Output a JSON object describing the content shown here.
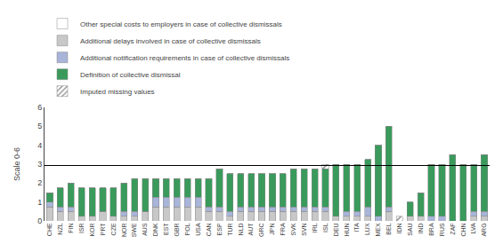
{
  "chart_data": {
    "type": "bar",
    "stacked": true,
    "ylabel": "Scale 0-6",
    "categories": [
      "CHE",
      "NZL",
      "FIN",
      "ISR",
      "KOR",
      "PRT",
      "CZE",
      "NOR",
      "SWE",
      "AUS",
      "DNK",
      "EST",
      "GBR",
      "POL",
      "USA",
      "CAN",
      "ESP",
      "TUR",
      "NLD",
      "AUT",
      "GRC",
      "JPN",
      "FRA",
      "SVK",
      "SVN",
      "IRL",
      "ISL",
      "DEU",
      "HUN",
      "ITA",
      "LUX",
      "MEX",
      "BEL",
      "IDN",
      "SAU",
      "IND",
      "BRA",
      "RUS",
      "ZAF",
      "CHN",
      "LVA",
      "ARG"
    ],
    "series": [
      {
        "name": "Other special costs to employers in case of collective dismissals",
        "color": "#ffffff",
        "values": [
          0.0,
          0.0,
          0.0,
          0.0,
          0.0,
          0.0,
          0.0,
          0.0,
          0.0,
          0.0,
          0.0,
          0.0,
          0.0,
          0.0,
          0.0,
          0.0,
          0.0,
          0.0,
          0.0,
          0.0,
          0.0,
          0.0,
          0.0,
          0.0,
          0.0,
          0.0,
          0.0,
          0.0,
          0.0,
          0.0,
          0.0,
          0.0,
          0.0,
          0.0,
          0.0,
          0.0,
          0.0,
          0.0,
          0.0,
          0.0,
          0.0,
          0.0
        ]
      },
      {
        "name": "Additional delays involved in case of collective dismissals",
        "color": "#c8c8c8",
        "values": [
          0.75,
          0.5,
          0.5,
          0.25,
          0.25,
          0.5,
          0.25,
          0.25,
          0.25,
          0.5,
          0.75,
          0.75,
          0.75,
          0.75,
          0.75,
          0.5,
          0.5,
          0.25,
          0.5,
          0.5,
          0.5,
          0.5,
          0.5,
          0.5,
          0.5,
          0.5,
          0.5,
          0.25,
          0.25,
          0.25,
          0.25,
          0.0,
          0.5,
          0.0,
          0.25,
          0.25,
          0.0,
          0.0,
          0.0,
          0.0,
          0.25,
          0.25
        ]
      },
      {
        "name": "Additional notification requirements in case of collective dismissals",
        "color": "#a8b4d8",
        "values": [
          0.25,
          0.25,
          0.25,
          0.0,
          0.0,
          0.0,
          0.0,
          0.25,
          0.25,
          0.0,
          0.5,
          0.5,
          0.5,
          0.5,
          0.5,
          0.25,
          0.25,
          0.25,
          0.25,
          0.25,
          0.25,
          0.25,
          0.25,
          0.25,
          0.25,
          0.25,
          0.25,
          0.0,
          0.25,
          0.25,
          0.5,
          0.25,
          0.25,
          0.0,
          0.0,
          0.0,
          0.25,
          0.25,
          0.0,
          0.0,
          0.25,
          0.25
        ]
      },
      {
        "name": "Definition of collective dismissal",
        "color": "#3a9a5c",
        "values": [
          0.5,
          1.0,
          1.25,
          1.5,
          1.5,
          1.25,
          1.5,
          1.5,
          1.75,
          1.75,
          1.0,
          1.0,
          1.0,
          1.0,
          1.0,
          1.5,
          2.0,
          2.0,
          1.75,
          1.75,
          1.75,
          1.75,
          1.75,
          2.0,
          2.0,
          2.0,
          2.0,
          2.75,
          2.5,
          2.5,
          2.5,
          3.75,
          4.25,
          0.0,
          0.75,
          1.25,
          2.75,
          2.75,
          3.5,
          3.0,
          2.5,
          3.0
        ]
      },
      {
        "name": "Imputed missing values",
        "color": "#ffffff",
        "marker": "hatch",
        "values": [
          0.0,
          0.0,
          0.0,
          0.0,
          0.0,
          0.0,
          0.0,
          0.0,
          0.0,
          0.0,
          0.0,
          0.0,
          0.0,
          0.0,
          0.0,
          0.0,
          0.0,
          0.0,
          0.0,
          0.0,
          0.0,
          0.0,
          0.0,
          0.0,
          0.0,
          0.0,
          0.25,
          0.0,
          0.0,
          0.0,
          0.0,
          0.0,
          0.0,
          0.25,
          0.0,
          0.0,
          0.0,
          0.0,
          0.0,
          0.0,
          0.0,
          0.0
        ]
      }
    ],
    "hline": 2.93,
    "ylim": [
      0,
      6.0
    ],
    "yticks": [
      0,
      1,
      2,
      3,
      4,
      5,
      6
    ],
    "grid": false,
    "legend": "top"
  }
}
